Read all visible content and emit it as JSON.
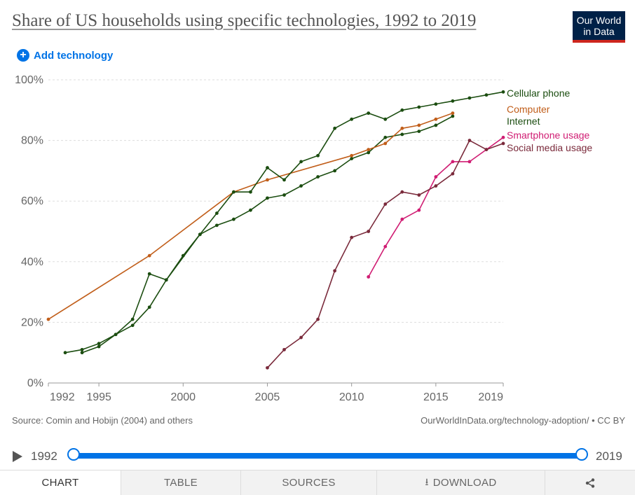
{
  "title": "Share of US households using specific technologies, 1992 to 2019",
  "logo": {
    "line1": "Our World",
    "line2": "in Data"
  },
  "add_technology": "Add technology",
  "source": "Source: Comin and Hobijn (2004) and others",
  "credit": "OurWorldInData.org/technology-adoption/ • CC BY",
  "timeline": {
    "start": "1992",
    "end": "2019"
  },
  "tabs": {
    "chart": "CHART",
    "table": "TABLE",
    "sources": "SOURCES",
    "download": "DOWNLOAD"
  },
  "chart_data": {
    "type": "line",
    "xlim": [
      1992,
      2019
    ],
    "ylim": [
      0,
      100
    ],
    "x_ticks": [
      1992,
      1995,
      2000,
      2005,
      2010,
      2015,
      2019
    ],
    "y_ticks": [
      0,
      20,
      40,
      60,
      80,
      100
    ],
    "y_tick_labels": [
      "0%",
      "20%",
      "40%",
      "60%",
      "80%",
      "100%"
    ],
    "grid": true,
    "series": [
      {
        "name": "Cellular phone",
        "color": "#1b4d10",
        "points": [
          [
            1993,
            10
          ],
          [
            1994,
            11
          ],
          [
            1995,
            13
          ],
          [
            1996,
            16
          ],
          [
            1997,
            19
          ],
          [
            1998,
            25
          ],
          [
            1999,
            34
          ],
          [
            2000,
            42
          ],
          [
            2001,
            49
          ],
          [
            2002,
            52
          ],
          [
            2003,
            54
          ],
          [
            2004,
            57
          ],
          [
            2005,
            61
          ],
          [
            2006,
            62
          ],
          [
            2007,
            65
          ],
          [
            2008,
            68
          ],
          [
            2009,
            70
          ],
          [
            2010,
            74
          ],
          [
            2011,
            76
          ],
          [
            2012,
            81
          ],
          [
            2013,
            82
          ],
          [
            2014,
            83
          ],
          [
            2015,
            85
          ],
          [
            2016,
            88
          ]
        ]
      },
      {
        "name": "Computer",
        "color": "#c15e1a",
        "points": [
          [
            1992,
            21
          ],
          [
            1998,
            42
          ],
          [
            2003,
            63
          ],
          [
            2005,
            67
          ],
          [
            2010,
            75
          ],
          [
            2011,
            77
          ],
          [
            2012,
            79
          ],
          [
            2013,
            84
          ],
          [
            2014,
            85
          ],
          [
            2015,
            87
          ],
          [
            2016,
            89
          ]
        ]
      },
      {
        "name": "Internet",
        "color": "#1b4d10",
        "points": [
          [
            1994,
            10
          ],
          [
            1995,
            12
          ],
          [
            1996,
            16
          ],
          [
            1997,
            21
          ],
          [
            1998,
            36
          ],
          [
            1999,
            34
          ],
          [
            2001,
            49
          ],
          [
            2002,
            56
          ],
          [
            2003,
            63
          ],
          [
            2004,
            63
          ],
          [
            2005,
            71
          ],
          [
            2006,
            67
          ],
          [
            2007,
            73
          ],
          [
            2008,
            75
          ],
          [
            2009,
            84
          ],
          [
            2010,
            87
          ],
          [
            2011,
            89
          ],
          [
            2012,
            87
          ],
          [
            2013,
            90
          ],
          [
            2014,
            91
          ],
          [
            2015,
            92
          ],
          [
            2016,
            93
          ],
          [
            2017,
            94
          ],
          [
            2018,
            95
          ],
          [
            2019,
            96
          ]
        ]
      },
      {
        "name": "Smartphone usage",
        "color": "#d01d73",
        "points": [
          [
            2011,
            35
          ],
          [
            2012,
            45
          ],
          [
            2013,
            54
          ],
          [
            2014,
            57
          ],
          [
            2015,
            68
          ],
          [
            2016,
            73
          ],
          [
            2017,
            73
          ],
          [
            2018,
            77
          ],
          [
            2019,
            81
          ]
        ]
      },
      {
        "name": "Social media usage",
        "color": "#7a2a3b",
        "points": [
          [
            2005,
            5
          ],
          [
            2006,
            11
          ],
          [
            2007,
            15
          ],
          [
            2008,
            21
          ],
          [
            2009,
            37
          ],
          [
            2010,
            48
          ],
          [
            2011,
            50
          ],
          [
            2012,
            59
          ],
          [
            2013,
            63
          ],
          [
            2014,
            62
          ],
          [
            2015,
            65
          ],
          [
            2016,
            69
          ],
          [
            2017,
            80
          ],
          [
            2018,
            77
          ],
          [
            2019,
            79
          ]
        ]
      }
    ]
  }
}
